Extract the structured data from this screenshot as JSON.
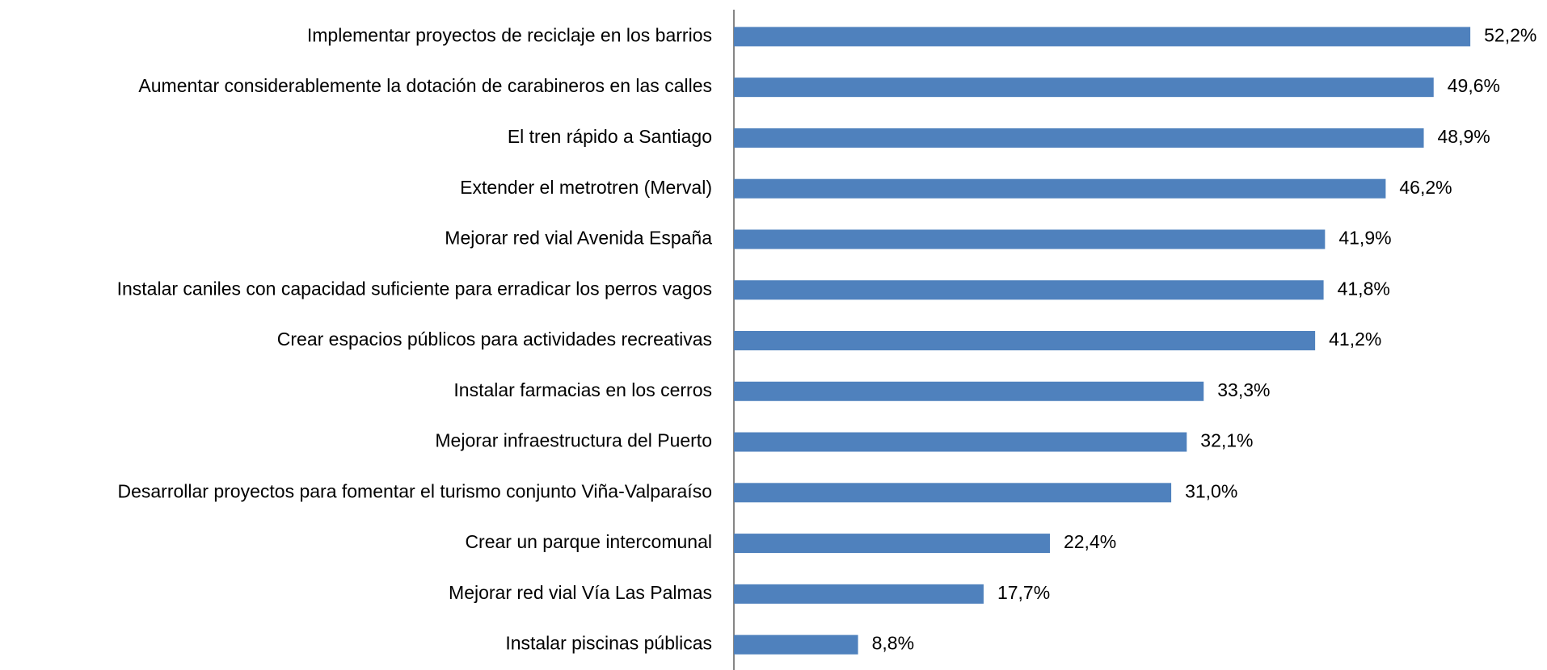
{
  "chart_data": {
    "type": "bar",
    "orientation": "horizontal",
    "categories": [
      "Implementar proyectos de reciclaje en los barrios",
      "Aumentar considerablemente la dotación de carabineros en las calles",
      "El tren rápido a Santiago",
      "Extender el metrotren (Merval)",
      "Mejorar red vial Avenida España",
      "Instalar caniles con capacidad suficiente para erradicar los perros vagos",
      "Crear espacios públicos para actividades recreativas",
      "Instalar farmacias en los cerros",
      "Mejorar infraestructura del Puerto",
      "Desarrollar proyectos para fomentar el turismo conjunto Viña-Valparaíso",
      "Crear un parque intercomunal",
      "Mejorar red vial Vía Las Palmas",
      "Instalar piscinas públicas"
    ],
    "values": [
      52.2,
      49.6,
      48.9,
      46.2,
      41.9,
      41.8,
      41.2,
      33.3,
      32.1,
      31.0,
      22.4,
      17.7,
      8.8
    ],
    "value_labels": [
      "52,2%",
      "49,6%",
      "48,9%",
      "46,2%",
      "41,9%",
      "41,8%",
      "41,2%",
      "33,3%",
      "32,1%",
      "31,0%",
      "22,4%",
      "17,7%",
      "8,8%"
    ],
    "color": "#4f81bd",
    "xlim": [
      0,
      55
    ]
  }
}
